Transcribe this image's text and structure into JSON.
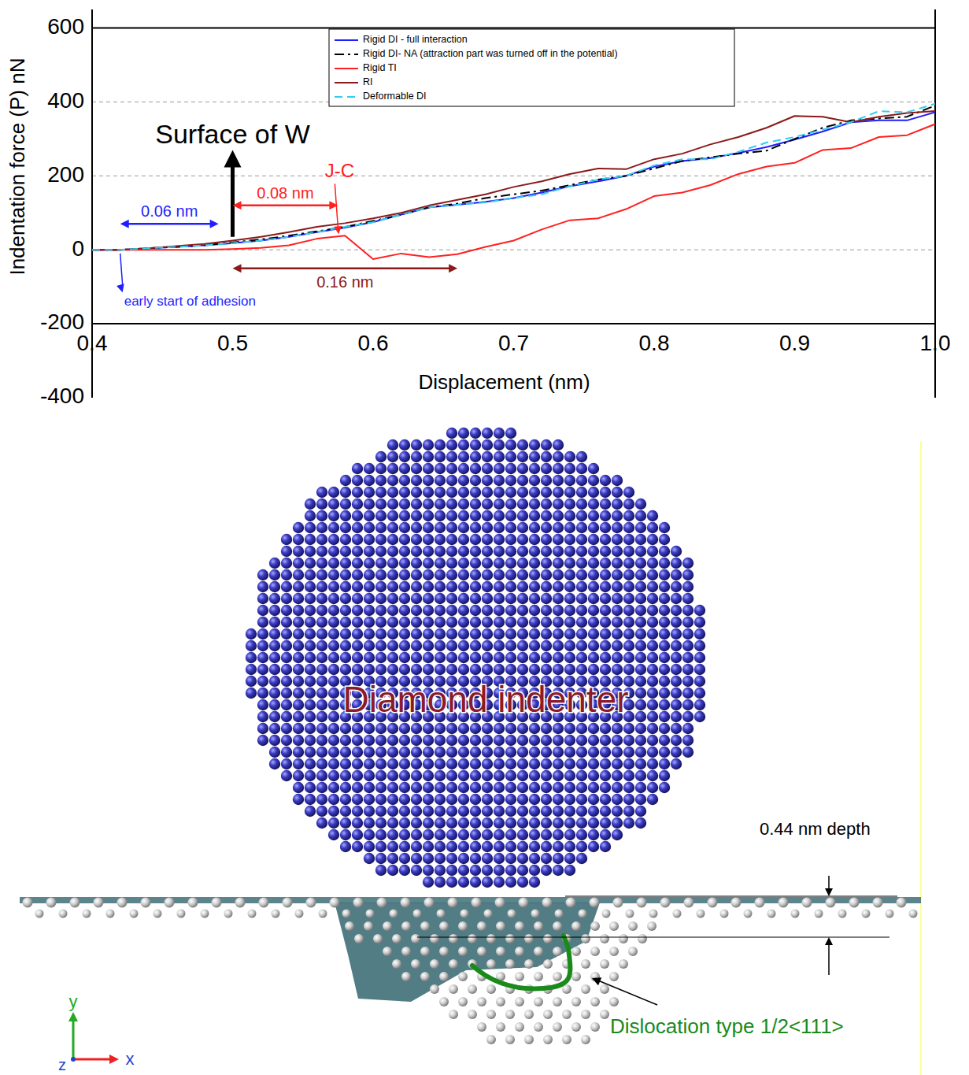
{
  "chart_data": {
    "type": "line",
    "x_label": "Displacement (nm)",
    "y_label": "Indentation force (P) nN",
    "x": [
      0.4,
      0.42,
      0.44,
      0.46,
      0.48,
      0.5,
      0.52,
      0.54,
      0.56,
      0.58,
      0.6,
      0.62,
      0.64,
      0.66,
      0.68,
      0.7,
      0.72,
      0.74,
      0.76,
      0.78,
      0.8,
      0.82,
      0.84,
      0.86,
      0.88,
      0.9,
      0.92,
      0.94,
      0.96,
      0.98,
      1.0
    ],
    "series": [
      {
        "name": "Rigid DI - full interaction",
        "color": "#1f1fff",
        "line_style": "solid",
        "values": [
          0,
          0,
          4,
          8,
          12,
          18,
          25,
          35,
          48,
          60,
          75,
          95,
          115,
          122,
          130,
          140,
          155,
          172,
          185,
          200,
          225,
          240,
          248,
          262,
          278,
          298,
          320,
          345,
          350,
          350,
          372
        ]
      },
      {
        "name": "Rigid DI- NA (attraction part was turned off in the potential)",
        "color": "#000000",
        "line_style": "dashdot",
        "values": [
          0,
          0,
          4,
          8,
          12,
          20,
          28,
          38,
          50,
          62,
          78,
          95,
          115,
          125,
          140,
          150,
          160,
          175,
          190,
          200,
          220,
          240,
          250,
          260,
          268,
          300,
          330,
          350,
          355,
          360,
          390
        ]
      },
      {
        "name": "Rigid TI",
        "color": "#ff2020",
        "line_style": "solid",
        "values": [
          0,
          0,
          0,
          0,
          0,
          2,
          5,
          12,
          30,
          38,
          -25,
          -10,
          -20,
          -12,
          8,
          25,
          55,
          80,
          85,
          110,
          145,
          155,
          175,
          205,
          225,
          235,
          270,
          275,
          305,
          310,
          340
        ]
      },
      {
        "name": "RI",
        "color": "#8b1a1a",
        "line_style": "solid",
        "values": [
          0,
          0,
          4,
          10,
          16,
          25,
          35,
          48,
          62,
          72,
          85,
          100,
          120,
          135,
          150,
          170,
          185,
          205,
          220,
          218,
          245,
          260,
          285,
          305,
          330,
          362,
          360,
          345,
          360,
          370,
          375
        ]
      },
      {
        "name": "Deformable DI",
        "color": "#33ccee",
        "line_style": "dashed",
        "values": [
          0,
          0,
          4,
          8,
          12,
          18,
          25,
          35,
          48,
          62,
          75,
          95,
          115,
          122,
          128,
          140,
          150,
          172,
          190,
          200,
          228,
          245,
          245,
          265,
          290,
          305,
          325,
          345,
          375,
          372,
          395
        ]
      }
    ],
    "xlim": [
      0.4,
      1.0
    ],
    "xticks": [
      0.4,
      0.5,
      0.6,
      0.7,
      0.8,
      0.9,
      {
        "value": 1.0,
        "label": "1.0"
      }
    ],
    "ylim": [
      -400,
      650
    ],
    "yticks": [
      -400,
      -200,
      0,
      200,
      400,
      600
    ],
    "grid": true,
    "legend": "top",
    "annotations": [
      {
        "text": "Surface of W",
        "x": 0.5,
        "y": [
          35,
          270
        ],
        "color": "#000000"
      },
      {
        "text": "J-C",
        "x": 0.575,
        "y": 38,
        "color": "#ff2020"
      },
      {
        "text": "0.06 nm",
        "x": [
          0.42,
          0.49
        ],
        "y": 70,
        "color": "#1f1fff"
      },
      {
        "text": "0.08 nm",
        "x": [
          0.5,
          0.575
        ],
        "y": 120,
        "color": "#ff2020"
      },
      {
        "text": "0.16 nm",
        "x": [
          0.5,
          0.66
        ],
        "y": -50,
        "color": "#8b1a1a"
      },
      {
        "text": "early start of adhesion",
        "x": 0.42,
        "y": [
          -10,
          -115
        ],
        "color": "#1f1fff"
      }
    ]
  },
  "diagram": {
    "label": "Diamond indenter",
    "depth": "0.44 nm depth",
    "dislocation": "Dislocation type 1/2<111>",
    "axes": [
      "y",
      "x",
      "z"
    ]
  }
}
